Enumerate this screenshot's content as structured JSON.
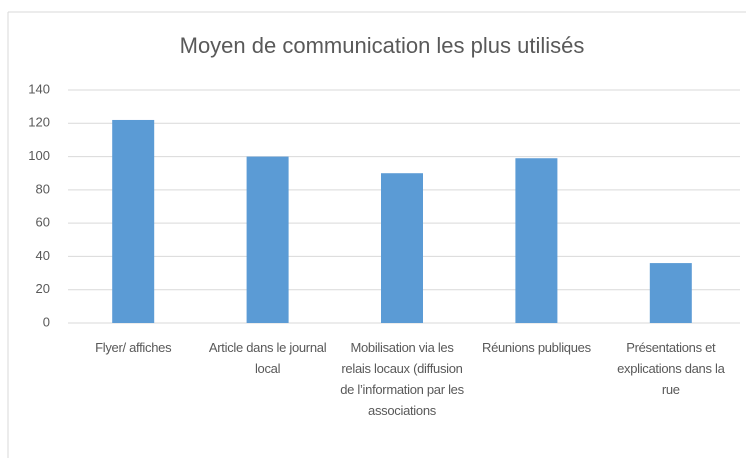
{
  "chart_data": {
    "type": "bar",
    "title": "Moyen de communication les plus utilisés",
    "categories": [
      "Flyer/ affiches",
      "Article dans le journal local",
      "Mobilisation via les relais locaux (diffusion de l’information par les associations",
      "Réunions publiques",
      "Présentations et explications dans la rue"
    ],
    "values": [
      122,
      100,
      90,
      99,
      36
    ],
    "color": "#5b9bd5",
    "ylim": [
      0,
      140
    ],
    "yticks": [
      0,
      20,
      40,
      60,
      80,
      100,
      120,
      140
    ],
    "grid": true
  }
}
